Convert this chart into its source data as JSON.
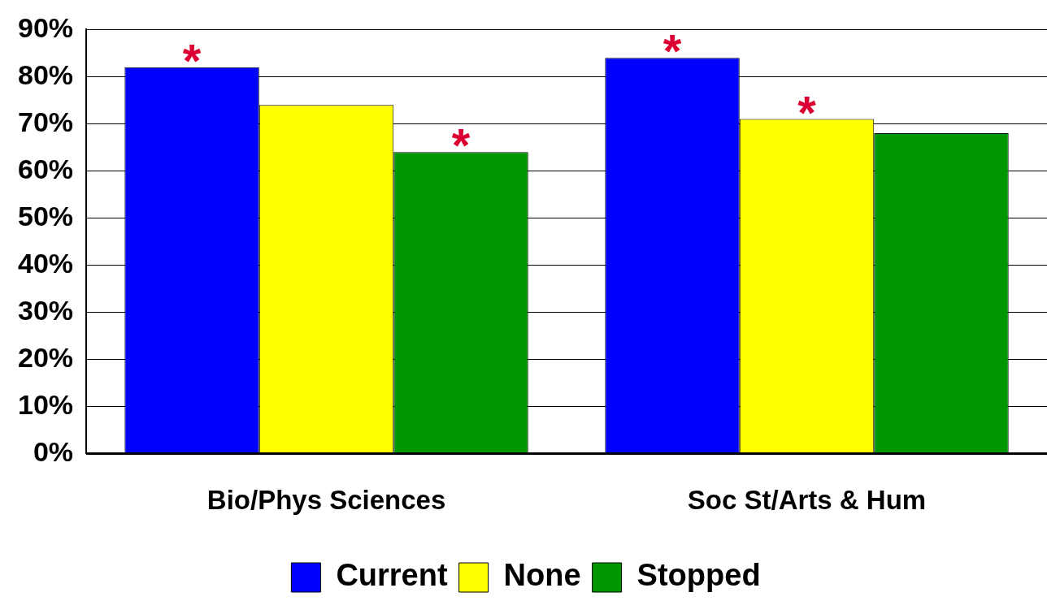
{
  "chart_data": {
    "type": "bar",
    "categories": [
      "Bio/Phys Sciences",
      "Soc St/Arts & Hum"
    ],
    "series": [
      {
        "name": "Current",
        "color": "#0000ff",
        "values": [
          82,
          84
        ],
        "value_labels": [
          "*",
          "*"
        ]
      },
      {
        "name": "None",
        "color": "#ffff00",
        "values": [
          74,
          71
        ],
        "value_labels": [
          null,
          "*"
        ]
      },
      {
        "name": "Stopped",
        "color": "#009600",
        "values": [
          64,
          68
        ],
        "value_labels": [
          "*",
          null
        ]
      }
    ],
    "ylim": [
      0,
      90
    ],
    "yticks": [
      {
        "value": 0,
        "label": "0%"
      },
      {
        "value": 10,
        "label": "10%"
      },
      {
        "value": 20,
        "label": "20%"
      },
      {
        "value": 30,
        "label": "30%"
      },
      {
        "value": 40,
        "label": "40%"
      },
      {
        "value": 50,
        "label": "50%"
      },
      {
        "value": 60,
        "label": "60%"
      },
      {
        "value": 70,
        "label": "70%"
      },
      {
        "value": 80,
        "label": "80%"
      },
      {
        "value": 90,
        "label": "90%"
      }
    ],
    "grid": "y",
    "legend": "bottom"
  }
}
